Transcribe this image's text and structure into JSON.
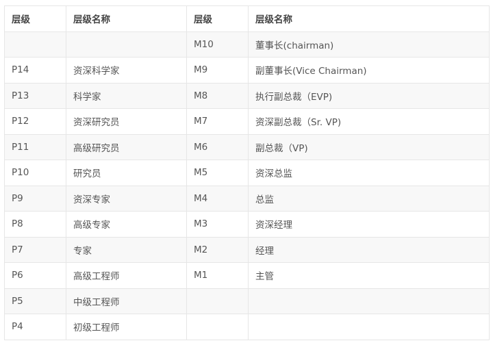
{
  "headers": [
    "层级",
    "层级名称",
    "层级",
    "层级名称"
  ],
  "rows": [
    [
      "",
      "",
      "M10",
      "董事长(chairman)"
    ],
    [
      "P14",
      "资深科学家",
      "M9",
      "副董事长(Vice Chairman)"
    ],
    [
      "P13",
      "科学家",
      "M8",
      "执行副总裁（EVP)"
    ],
    [
      "P12",
      "资深研究员",
      "M7",
      "资深副总裁（Sr. VP)"
    ],
    [
      "P11",
      "高级研究员",
      "M6",
      "副总裁（VP)"
    ],
    [
      "P10",
      "研究员",
      "M5",
      "资深总监"
    ],
    [
      "P9",
      "资深专家",
      "M4",
      "总监"
    ],
    [
      "P8",
      "高级专家",
      "M3",
      "资深经理"
    ],
    [
      "P7",
      "专家",
      "M2",
      "经理"
    ],
    [
      "P6",
      "高级工程师",
      "M1",
      "主管"
    ],
    [
      "P5",
      "中级工程师",
      "",
      ""
    ],
    [
      "P4",
      "初级工程师",
      "",
      ""
    ]
  ]
}
